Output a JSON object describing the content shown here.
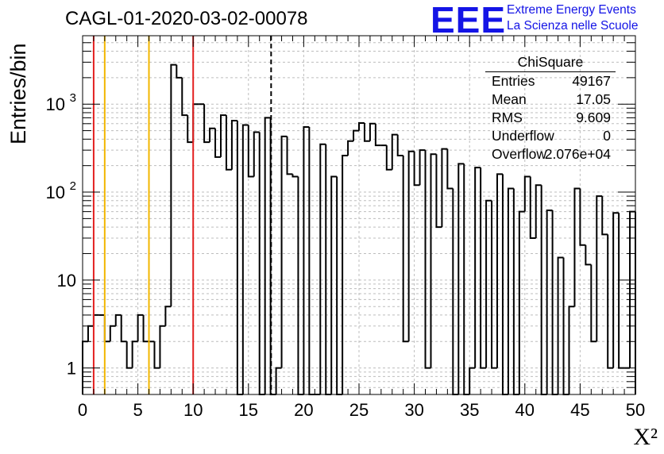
{
  "title": "CAGL-01-2020-03-02-00078",
  "logo": {
    "mark": "EEE",
    "line1": "Extreme Energy Events",
    "line2": "La Scienza nelle Scuole"
  },
  "stats": {
    "title": "ChiSquare",
    "rows": [
      {
        "name": "Entries",
        "value": "49167"
      },
      {
        "name": "Mean",
        "value": "17.05"
      },
      {
        "name": "RMS",
        "value": "9.609"
      },
      {
        "name": "Underflow",
        "value": "0"
      },
      {
        "name": "Overflow",
        "value": "2.076e+04"
      }
    ]
  },
  "chart_data": {
    "type": "histogram",
    "title": "CAGL-01-2020-03-02-00078",
    "xlabel": "X²",
    "ylabel": "Entries/bin",
    "xlim": [
      0,
      50
    ],
    "ylim": [
      0.5,
      6000
    ],
    "y_scale": "log",
    "grid": true,
    "bin_width": 0.5,
    "x_ticks": [
      0,
      5,
      10,
      15,
      20,
      25,
      30,
      35,
      40,
      45,
      50
    ],
    "y_ticks": [
      {
        "value": 1,
        "label": "1"
      },
      {
        "value": 10,
        "label": "10"
      },
      {
        "value": 100,
        "label": "10",
        "exponent": "2"
      },
      {
        "value": 1000,
        "label": "10",
        "exponent": "3"
      }
    ],
    "values": [
      2,
      3,
      4,
      4,
      2,
      3,
      4,
      2,
      1,
      2,
      4,
      2,
      2,
      1,
      3,
      5,
      2800,
      2000,
      750,
      370,
      1000,
      1000,
      370,
      530,
      250,
      750,
      180,
      650,
      0,
      580,
      150,
      480,
      0,
      700,
      0,
      1,
      430,
      160,
      150,
      0,
      550,
      0,
      0,
      350,
      0,
      150,
      0,
      260,
      380,
      500,
      610,
      380,
      600,
      340,
      340,
      180,
      450,
      260,
      2,
      290,
      120,
      300,
      1,
      270,
      40,
      310,
      110,
      0,
      210,
      0,
      1,
      190,
      1,
      80,
      1,
      160,
      0,
      110,
      0,
      60,
      150,
      30,
      120,
      0,
      62,
      0,
      18,
      0,
      5,
      110,
      25,
      15,
      2,
      90,
      33,
      1,
      58,
      1,
      1,
      60
    ],
    "markers": [
      {
        "x": 1,
        "color": "#e32020",
        "style": "solid"
      },
      {
        "x": 2,
        "color": "#f2b600",
        "style": "solid"
      },
      {
        "x": 6,
        "color": "#f2b600",
        "style": "solid"
      },
      {
        "x": 10,
        "color": "#e32020",
        "style": "solid"
      },
      {
        "x": 17.05,
        "color": "#000000",
        "style": "dashed"
      }
    ]
  }
}
